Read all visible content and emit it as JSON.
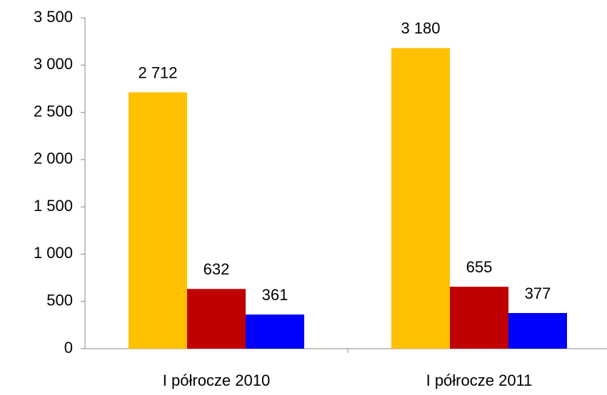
{
  "chart_data": {
    "type": "bar",
    "categories": [
      "I półrocze 2010",
      "I półrocze 2011"
    ],
    "series": [
      {
        "color": "#ffc000",
        "values": [
          2712,
          3180
        ],
        "value_labels": [
          "2 712",
          "3 180"
        ]
      },
      {
        "color": "#c00000",
        "values": [
          632,
          655
        ]
      },
      {
        "color": "#0000ff",
        "values": [
          361,
          377
        ]
      }
    ],
    "ylim": [
      0,
      3500
    ],
    "yticks": [
      0,
      500,
      {
        "value": 1000,
        "label": "1 000"
      },
      {
        "value": 1500,
        "label": "1 500"
      },
      {
        "value": 2000,
        "label": "2 000"
      },
      {
        "value": 2500,
        "label": "2 500"
      },
      {
        "value": 3000,
        "label": "3 000"
      },
      {
        "value": 3500,
        "label": "3 500"
      }
    ]
  }
}
